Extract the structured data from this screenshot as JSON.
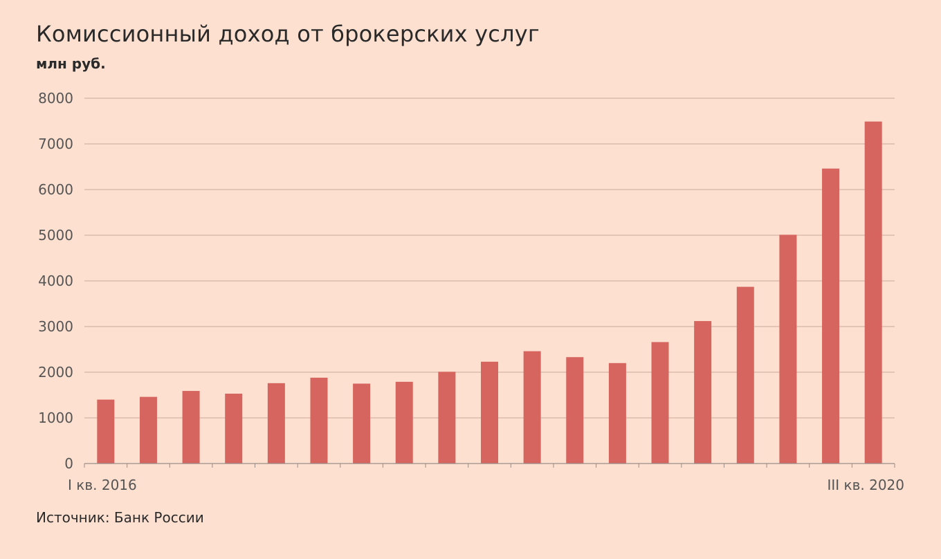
{
  "chart_data": {
    "type": "bar",
    "title": "Комиссионный доход от брокерских услуг",
    "subtitle": "млн руб.",
    "source": "Источник: Банк России",
    "x_first_label": "I кв. 2016",
    "x_last_label": "III кв. 2020",
    "ylim": [
      0,
      8000
    ],
    "yticks": [
      0,
      1000,
      2000,
      3000,
      4000,
      5000,
      6000,
      7000,
      8000
    ],
    "grid": true,
    "bar_color": "#d6655f",
    "grid_color": "#c9a89a",
    "values": [
      1400,
      1460,
      1590,
      1530,
      1760,
      1880,
      1750,
      1790,
      2010,
      2230,
      2460,
      2330,
      2200,
      2660,
      3120,
      3870,
      5010,
      6460,
      7490
    ]
  }
}
